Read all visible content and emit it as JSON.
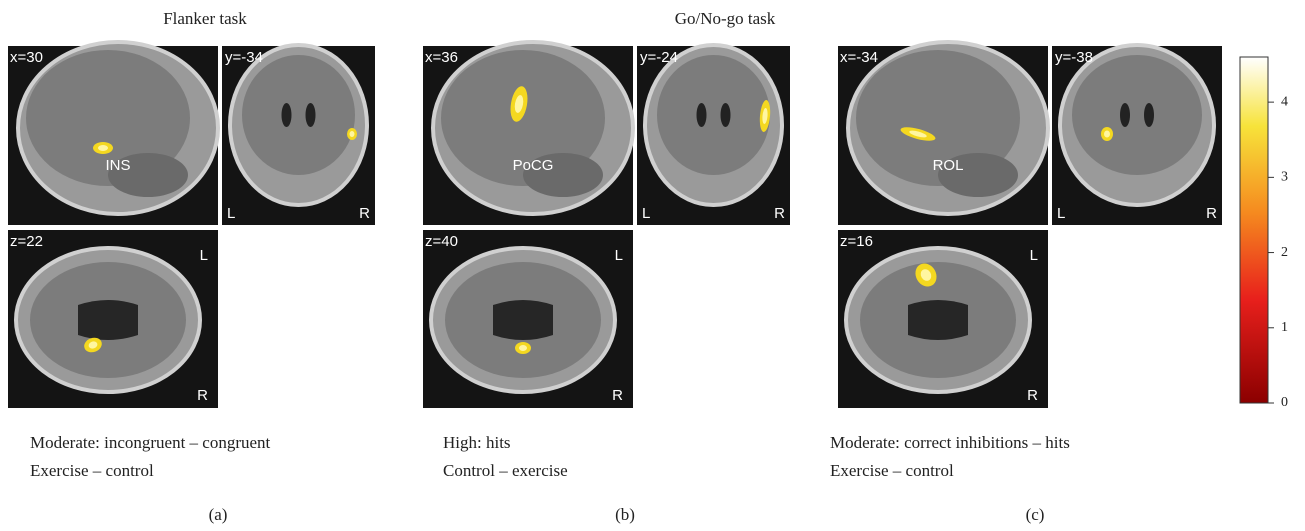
{
  "headers": [
    "Flanker task",
    "Go/No-go task"
  ],
  "panels": [
    {
      "sagittal": {
        "coord": "x=30",
        "region": "INS"
      },
      "coronal": {
        "coord": "y=-34",
        "left": "L",
        "right": "R"
      },
      "axial": {
        "coord": "z=22",
        "top": "L",
        "bottom": "R"
      },
      "caption": [
        "Moderate: incongruent – congruent",
        "Exercise – control"
      ],
      "letter": "(a)"
    },
    {
      "sagittal": {
        "coord": "x=36",
        "region": "PoCG"
      },
      "coronal": {
        "coord": "y=-24",
        "left": "L",
        "right": "R"
      },
      "axial": {
        "coord": "z=40",
        "top": "L",
        "bottom": "R"
      },
      "caption": [
        "High: hits",
        "Control – exercise"
      ],
      "letter": "(b)"
    },
    {
      "sagittal": {
        "coord": "x=-34",
        "region": "ROL"
      },
      "coronal": {
        "coord": "y=-38",
        "left": "L",
        "right": "R"
      },
      "axial": {
        "coord": "z=16",
        "top": "L",
        "bottom": "R"
      },
      "caption": [
        "Moderate: correct inhibitions – hits",
        "Exercise – control"
      ],
      "letter": "(c)"
    }
  ],
  "colorbar": {
    "range": [
      0,
      4.6
    ],
    "ticks": [
      0,
      1,
      2,
      3,
      4
    ]
  }
}
